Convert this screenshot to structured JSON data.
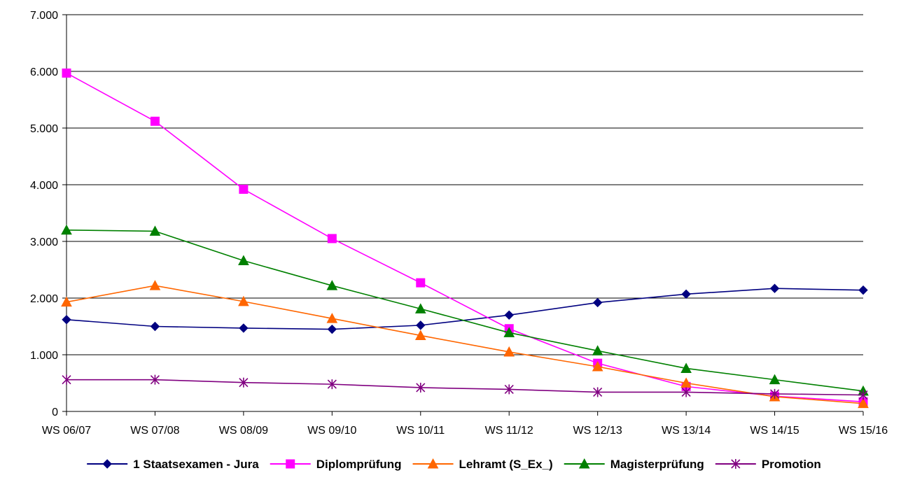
{
  "chart_data": {
    "type": "line",
    "title": "",
    "xlabel": "",
    "ylabel": "",
    "categories": [
      "WS 06/07",
      "WS 07/08",
      "WS 08/09",
      "WS 09/10",
      "WS 10/11",
      "WS 11/12",
      "WS 12/13",
      "WS 13/14",
      "WS 14/15",
      "WS 15/16"
    ],
    "ylim": [
      0,
      7000
    ],
    "yticks": [
      0,
      1000,
      2000,
      3000,
      4000,
      5000,
      6000,
      7000
    ],
    "ytick_labels": [
      "0",
      "1.000",
      "2.000",
      "3.000",
      "4.000",
      "5.000",
      "6.000",
      "7.000"
    ],
    "grid": "horizontal",
    "legend_position": "bottom",
    "series": [
      {
        "name": "1 Staatsexamen - Jura",
        "color": "#000080",
        "marker": "diamond",
        "values": [
          1620,
          1500,
          1470,
          1450,
          1520,
          1700,
          1920,
          2070,
          2170,
          2140
        ]
      },
      {
        "name": "Diplomprüfung",
        "color": "#FF00FF",
        "marker": "square",
        "values": [
          5970,
          5120,
          3920,
          3050,
          2270,
          1460,
          850,
          440,
          270,
          170
        ]
      },
      {
        "name": "Lehramt (S_Ex_)",
        "color": "#FF6600",
        "marker": "triangle",
        "values": [
          1930,
          2220,
          1940,
          1640,
          1340,
          1050,
          790,
          500,
          260,
          140
        ]
      },
      {
        "name": "Magisterprüfung",
        "color": "#008000",
        "marker": "triangle",
        "values": [
          3200,
          3180,
          2660,
          2220,
          1810,
          1390,
          1070,
          760,
          560,
          360
        ]
      },
      {
        "name": "Promotion",
        "color": "#800080",
        "marker": "star",
        "values": [
          560,
          560,
          510,
          480,
          420,
          390,
          340,
          340,
          310,
          290
        ]
      }
    ]
  }
}
